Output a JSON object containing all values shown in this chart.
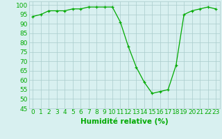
{
  "x": [
    0,
    1,
    2,
    3,
    4,
    5,
    6,
    7,
    8,
    9,
    10,
    11,
    12,
    13,
    14,
    15,
    16,
    17,
    18,
    19,
    20,
    21,
    22,
    23
  ],
  "y": [
    94,
    95,
    97,
    97,
    97,
    98,
    98,
    99,
    99,
    99,
    99,
    91,
    78,
    67,
    59,
    53,
    54,
    55,
    68,
    95,
    97,
    98,
    99,
    98
  ],
  "line_color": "#00aa00",
  "marker_color": "#00aa00",
  "bg_color": "#d8f0f0",
  "grid_color": "#aacccc",
  "xlabel": "Humidité relative (%)",
  "xlabel_color": "#00aa00",
  "ylim": [
    45,
    102
  ],
  "xlim": [
    -0.5,
    23.5
  ],
  "yticks": [
    45,
    50,
    55,
    60,
    65,
    70,
    75,
    80,
    85,
    90,
    95,
    100
  ],
  "xtick_labels": [
    "0",
    "1",
    "2",
    "3",
    "4",
    "5",
    "6",
    "7",
    "8",
    "9",
    "10",
    "11",
    "12",
    "13",
    "14",
    "15",
    "16",
    "17",
    "18",
    "19",
    "20",
    "21",
    "22",
    "23"
  ],
  "tick_color": "#00aa00",
  "font_size": 6.5
}
